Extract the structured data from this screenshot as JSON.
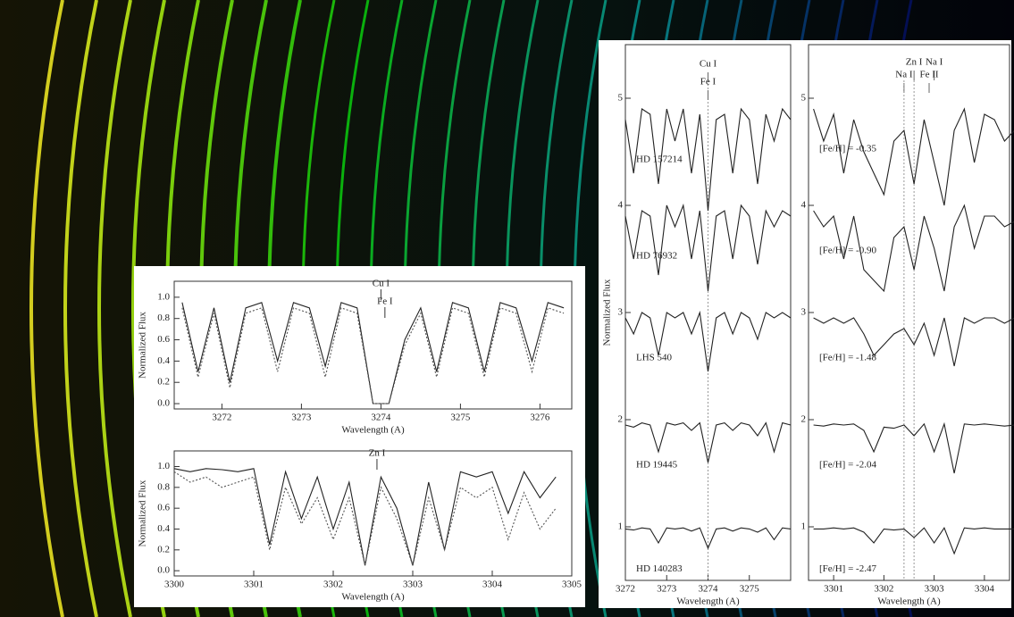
{
  "chart_data": [
    {
      "type": "line",
      "xlabel": "Wavelength (A)",
      "ylabel": "Normalized Flux",
      "x": [
        3271.5,
        3271.7,
        3271.9,
        3272.1,
        3272.3,
        3272.5,
        3272.7,
        3272.9,
        3273.1,
        3273.3,
        3273.5,
        3273.7,
        3273.9,
        3274.1,
        3274.3,
        3274.5,
        3274.7,
        3274.9,
        3275.1,
        3275.3,
        3275.5,
        3275.7,
        3275.9,
        3276.1,
        3276.3
      ],
      "series": [
        {
          "color": "#222222",
          "line_style": "solid",
          "values": [
            0.95,
            0.3,
            0.9,
            0.2,
            0.9,
            0.95,
            0.4,
            0.95,
            0.9,
            0.35,
            0.95,
            0.9,
            0.0,
            0.0,
            0.6,
            0.9,
            0.3,
            0.95,
            0.9,
            0.3,
            0.95,
            0.9,
            0.4,
            0.95,
            0.9
          ]
        },
        {
          "color": "#555555",
          "line_style": "dotted",
          "values": [
            0.9,
            0.25,
            0.85,
            0.15,
            0.85,
            0.9,
            0.3,
            0.9,
            0.85,
            0.25,
            0.9,
            0.85,
            0.0,
            0.0,
            0.55,
            0.85,
            0.25,
            0.9,
            0.85,
            0.25,
            0.9,
            0.85,
            0.3,
            0.9,
            0.85
          ]
        }
      ],
      "annotations": [
        {
          "text": "Cu I",
          "x": 3274.0
        },
        {
          "text": "Fe I",
          "x": 3274.05
        }
      ],
      "xlim": [
        3271.4,
        3276.4
      ],
      "xticks": [
        3272,
        3273,
        3274,
        3275,
        3276
      ],
      "ylim": [
        -0.05,
        1.15
      ],
      "yticks": [
        {
          "value": 0,
          "label": "0.0"
        },
        0.2,
        0.4,
        0.6,
        0.8,
        {
          "value": 1,
          "label": "1.0"
        }
      ]
    },
    {
      "type": "line",
      "xlabel": "Wavelength (A)",
      "ylabel": "Normalized Flux",
      "x": [
        3300.0,
        3300.2,
        3300.4,
        3300.6,
        3300.8,
        3301.0,
        3301.2,
        3301.4,
        3301.6,
        3301.8,
        3302.0,
        3302.2,
        3302.4,
        3302.6,
        3302.8,
        3303.0,
        3303.2,
        3303.4,
        3303.6,
        3303.8,
        3304.0,
        3304.2,
        3304.4,
        3304.6,
        3304.8
      ],
      "series": [
        {
          "color": "#222222",
          "line_style": "solid",
          "values": [
            0.98,
            0.95,
            0.98,
            0.97,
            0.95,
            0.98,
            0.25,
            0.95,
            0.5,
            0.9,
            0.4,
            0.85,
            0.05,
            0.9,
            0.6,
            0.05,
            0.85,
            0.2,
            0.95,
            0.9,
            0.95,
            0.55,
            0.95,
            0.7,
            0.9
          ]
        },
        {
          "color": "#555555",
          "line_style": "dotted",
          "values": [
            0.95,
            0.85,
            0.9,
            0.8,
            0.85,
            0.9,
            0.2,
            0.8,
            0.45,
            0.7,
            0.3,
            0.7,
            0.05,
            0.8,
            0.5,
            0.05,
            0.7,
            0.2,
            0.8,
            0.7,
            0.8,
            0.3,
            0.75,
            0.4,
            0.6
          ]
        }
      ],
      "annotations": [
        {
          "text": "Zn I",
          "x": 3302.55
        }
      ],
      "xlim": [
        3300.0,
        3305.0
      ],
      "xticks": [
        3300,
        3301,
        3302,
        3303,
        3304,
        3305
      ],
      "ylim": [
        -0.05,
        1.15
      ],
      "yticks": [
        {
          "value": 0,
          "label": "0.0"
        },
        0.2,
        0.4,
        0.6,
        0.8,
        {
          "value": 1,
          "label": "1.0"
        }
      ]
    },
    {
      "type": "line",
      "xlabel": "Wavelength (A)",
      "ylabel": "Normalized Flux",
      "x": [
        3272.0,
        3272.2,
        3272.4,
        3272.6,
        3272.8,
        3273.0,
        3273.2,
        3273.4,
        3273.6,
        3273.8,
        3274.0,
        3274.2,
        3274.4,
        3274.6,
        3274.8,
        3275.0,
        3275.2,
        3275.4,
        3275.6,
        3275.8,
        3276.0
      ],
      "series": [
        {
          "name": "HD 157214",
          "color": "#222222",
          "values": [
            4.8,
            4.3,
            4.9,
            4.85,
            4.2,
            4.9,
            4.6,
            4.9,
            4.3,
            4.85,
            3.95,
            4.8,
            4.85,
            4.3,
            4.9,
            4.8,
            4.2,
            4.85,
            4.6,
            4.9,
            4.8
          ]
        },
        {
          "name": "HD 76932",
          "color": "#222222",
          "values": [
            3.9,
            3.5,
            3.95,
            3.9,
            3.35,
            4.0,
            3.8,
            4.0,
            3.5,
            3.95,
            3.2,
            3.9,
            3.95,
            3.5,
            4.0,
            3.9,
            3.45,
            3.95,
            3.8,
            3.95,
            3.9
          ]
        },
        {
          "name": "LHS 540",
          "color": "#222222",
          "values": [
            2.95,
            2.8,
            3.0,
            2.95,
            2.6,
            3.0,
            2.95,
            3.0,
            2.8,
            3.0,
            2.45,
            2.95,
            3.0,
            2.8,
            3.0,
            2.95,
            2.75,
            3.0,
            2.95,
            3.0,
            2.95
          ]
        },
        {
          "name": "HD 19445",
          "color": "#222222",
          "values": [
            1.95,
            1.93,
            1.97,
            1.95,
            1.7,
            1.97,
            1.95,
            1.97,
            1.9,
            1.97,
            1.6,
            1.95,
            1.97,
            1.9,
            1.97,
            1.95,
            1.85,
            1.97,
            1.7,
            1.97,
            1.95
          ]
        },
        {
          "name": "HD 140283",
          "color": "#222222",
          "values": [
            0.98,
            0.97,
            0.99,
            0.98,
            0.85,
            0.99,
            0.98,
            0.99,
            0.96,
            0.99,
            0.8,
            0.98,
            0.99,
            0.96,
            0.99,
            0.98,
            0.95,
            0.99,
            0.88,
            0.99,
            0.98
          ]
        }
      ],
      "annotations": [
        {
          "text": "Cu I",
          "x": 3274.0
        },
        {
          "text": "Fe I",
          "x": 3274.0
        }
      ],
      "xlim": [
        3272.0,
        3276.0
      ],
      "xticks": [
        3272,
        3273,
        3274,
        3275
      ],
      "ylim": [
        0.5,
        5.5
      ],
      "yticks": [
        1,
        2,
        3,
        4,
        5
      ]
    },
    {
      "type": "line",
      "xlabel": "Wavelength (A)",
      "x": [
        3300.6,
        3300.8,
        3301.0,
        3301.2,
        3301.4,
        3301.6,
        3301.8,
        3302.0,
        3302.2,
        3302.4,
        3302.6,
        3302.8,
        3303.0,
        3303.2,
        3303.4,
        3303.6,
        3303.8,
        3304.0,
        3304.2,
        3304.4,
        3304.6
      ],
      "series": [
        {
          "name": "[Fe/H] = -0.35",
          "color": "#222222",
          "values": [
            4.9,
            4.6,
            4.85,
            4.3,
            4.8,
            4.5,
            4.3,
            4.1,
            4.6,
            4.7,
            4.2,
            4.8,
            4.4,
            4.0,
            4.7,
            4.9,
            4.4,
            4.85,
            4.8,
            4.6,
            4.7
          ]
        },
        {
          "name": "[Fe/H] = -0.90",
          "color": "#222222",
          "values": [
            3.95,
            3.8,
            3.9,
            3.5,
            3.9,
            3.4,
            3.3,
            3.2,
            3.7,
            3.8,
            3.4,
            3.9,
            3.6,
            3.2,
            3.8,
            4.0,
            3.6,
            3.9,
            3.9,
            3.8,
            3.85
          ]
        },
        {
          "name": "[Fe/H] = -1.48",
          "color": "#222222",
          "values": [
            2.95,
            2.9,
            2.95,
            2.9,
            2.95,
            2.8,
            2.6,
            2.7,
            2.8,
            2.85,
            2.7,
            2.9,
            2.6,
            2.95,
            2.5,
            2.95,
            2.9,
            2.95,
            2.95,
            2.9,
            2.95
          ]
        },
        {
          "name": "[Fe/H] = -2.04",
          "color": "#222222",
          "values": [
            1.95,
            1.94,
            1.96,
            1.95,
            1.96,
            1.9,
            1.7,
            1.93,
            1.92,
            1.95,
            1.85,
            1.96,
            1.7,
            1.96,
            1.5,
            1.96,
            1.95,
            1.96,
            1.95,
            1.94,
            1.95
          ]
        },
        {
          "name": "[Fe/H] = -2.47",
          "color": "#222222",
          "values": [
            0.98,
            0.98,
            0.99,
            0.98,
            0.99,
            0.95,
            0.85,
            0.98,
            0.97,
            0.98,
            0.9,
            0.99,
            0.85,
            0.99,
            0.75,
            0.99,
            0.98,
            0.99,
            0.98,
            0.98,
            0.98
          ]
        }
      ],
      "annotations": [
        {
          "text": "Na I",
          "x": 3302.4
        },
        {
          "text": "Zn I",
          "x": 3302.6
        },
        {
          "text": "Na I",
          "x": 3303.0
        },
        {
          "text": "Fe II",
          "x": 3302.9
        }
      ],
      "xlim": [
        3300.5,
        3304.5
      ],
      "xticks": [
        3301,
        3302,
        3303,
        3304
      ],
      "ylim": [
        0.5,
        5.5
      ],
      "yticks": [
        1,
        2,
        3,
        4,
        5
      ]
    }
  ]
}
